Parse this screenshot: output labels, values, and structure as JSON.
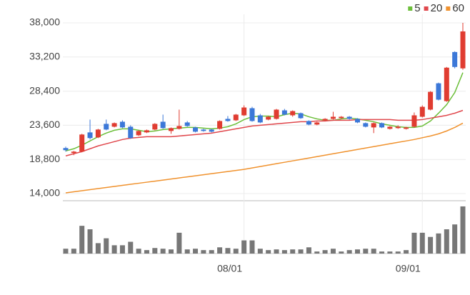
{
  "chart_data": {
    "type": "candlestick",
    "categories": [
      null,
      null,
      null,
      null,
      null,
      null,
      null,
      null,
      null,
      null,
      null,
      null,
      null,
      null,
      null,
      null,
      null,
      null,
      null,
      null,
      null,
      null,
      "08/01",
      null,
      null,
      null,
      null,
      null,
      null,
      null,
      null,
      null,
      null,
      null,
      null,
      null,
      null,
      null,
      null,
      null,
      null,
      null,
      null,
      null,
      "09/01",
      null,
      null,
      null,
      null,
      null
    ],
    "open": [
      20400,
      19700,
      19900,
      22600,
      21900,
      23800,
      23400,
      24100,
      23400,
      22200,
      22600,
      23000,
      24100,
      22800,
      23100,
      24000,
      23300,
      23000,
      23000,
      23100,
      24500,
      24300,
      25000,
      26000,
      25000,
      24400,
      24500,
      25700,
      25000,
      25300,
      24200,
      23700,
      24300,
      24500,
      24600,
      24800,
      24500,
      23900,
      23300,
      23900,
      23100,
      23200,
      23100,
      23400,
      24800,
      25800,
      29500,
      27000,
      33900,
      31600
    ],
    "high": [
      20600,
      20000,
      22400,
      24400,
      23100,
      24400,
      24000,
      24300,
      23600,
      22900,
      23000,
      23900,
      25100,
      23300,
      25800,
      24200,
      23400,
      23100,
      23100,
      24300,
      24900,
      25200,
      26400,
      26200,
      25200,
      24900,
      25900,
      25900,
      25700,
      25400,
      24300,
      24100,
      24600,
      25500,
      24900,
      24900,
      24600,
      24000,
      24000,
      24000,
      23500,
      23600,
      23400,
      25400,
      26400,
      28400,
      29600,
      31800,
      34000,
      38000
    ],
    "low": [
      19900,
      19400,
      19800,
      21600,
      21800,
      22900,
      23300,
      23200,
      21700,
      22100,
      22500,
      22900,
      23100,
      22400,
      23000,
      23400,
      22600,
      22700,
      22600,
      23000,
      24100,
      24200,
      24900,
      24100,
      23900,
      24300,
      24400,
      25000,
      24800,
      24500,
      23600,
      23600,
      24200,
      24400,
      24500,
      24400,
      23900,
      23300,
      22500,
      23200,
      23000,
      23100,
      23000,
      23300,
      24700,
      25700,
      27100,
      26900,
      31600,
      31400
    ],
    "close": [
      20100,
      19900,
      22300,
      21800,
      23000,
      23000,
      23900,
      23300,
      21800,
      22800,
      22900,
      23800,
      23200,
      23200,
      23500,
      23500,
      22700,
      22800,
      22700,
      24200,
      24200,
      25100,
      26100,
      24200,
      24000,
      24800,
      25800,
      25100,
      25600,
      24600,
      23700,
      24000,
      24500,
      24800,
      24800,
      24500,
      24000,
      23400,
      23900,
      23300,
      23400,
      23400,
      23300,
      25000,
      26200,
      28300,
      27200,
      31700,
      31800,
      36800
    ],
    "up_color": "#e03c31",
    "down_color": "#3c78d8",
    "ylim": [
      14000,
      38000
    ],
    "yticks": [
      {
        "value": 14000,
        "label": "14,000"
      },
      {
        "value": 18800,
        "label": "18,800"
      },
      {
        "value": 23600,
        "label": "23,600"
      },
      {
        "value": 28400,
        "label": "28,400"
      },
      {
        "value": 33200,
        "label": "33,200"
      },
      {
        "value": 38000,
        "label": "38,000"
      }
    ],
    "moving_averages": [
      {
        "name": "5",
        "color": "#6cbf3a",
        "values": [
          20000,
          20300,
          20800,
          21400,
          22000,
          22500,
          22900,
          23100,
          23100,
          22900,
          22700,
          22800,
          23000,
          23100,
          23200,
          23300,
          23300,
          23200,
          23100,
          23200,
          23400,
          23800,
          24400,
          24800,
          24900,
          24900,
          24800,
          25100,
          25300,
          25200,
          24800,
          24500,
          24300,
          24300,
          24500,
          24600,
          24500,
          24300,
          24100,
          23800,
          23600,
          23400,
          23300,
          23300,
          23500,
          24200,
          25300,
          26500,
          28200,
          31000
        ]
      },
      {
        "name": "20",
        "color": "#e0474c",
        "values": [
          19300,
          19600,
          19900,
          20300,
          20700,
          21000,
          21300,
          21600,
          21800,
          21900,
          22000,
          22000,
          22000,
          22000,
          22100,
          22200,
          22300,
          22400,
          22500,
          22700,
          22900,
          23100,
          23300,
          23500,
          23600,
          23700,
          23800,
          23900,
          24000,
          24100,
          24100,
          24200,
          24200,
          24300,
          24300,
          24300,
          24400,
          24400,
          24400,
          24400,
          24400,
          24300,
          24300,
          24300,
          24400,
          24600,
          24800,
          25000,
          25300,
          25700
        ]
      },
      {
        "name": "60",
        "color": "#f0922e",
        "values": [
          14100,
          14250,
          14400,
          14550,
          14700,
          14850,
          15000,
          15150,
          15300,
          15450,
          15600,
          15750,
          15900,
          16050,
          16200,
          16350,
          16500,
          16650,
          16800,
          16950,
          17100,
          17250,
          17400,
          17600,
          17800,
          18000,
          18200,
          18400,
          18600,
          18800,
          19000,
          19200,
          19400,
          19600,
          19800,
          20000,
          20200,
          20400,
          20600,
          20800,
          21000,
          21200,
          21400,
          21600,
          21850,
          22100,
          22400,
          22800,
          23300,
          23900
        ]
      }
    ],
    "volume": [
      7,
      7,
      40,
      35,
      15,
      22,
      12,
      12,
      17,
      7,
      5,
      8,
      7,
      6,
      30,
      6,
      7,
      5,
      5,
      9,
      8,
      7,
      19,
      19,
      7,
      5,
      6,
      5,
      6,
      6,
      9,
      3,
      5,
      7,
      3,
      5,
      6,
      7,
      7,
      3,
      3,
      3,
      5,
      30,
      30,
      24,
      29,
      35,
      42,
      68
    ],
    "volume_color": "#777777",
    "volume_ylim": [
      0,
      70
    ],
    "grid": true
  }
}
